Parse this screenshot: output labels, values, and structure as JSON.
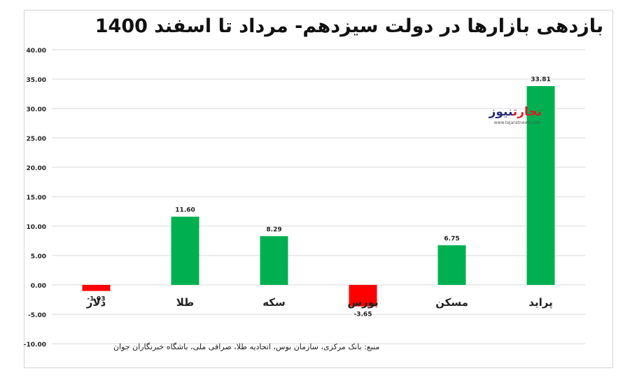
{
  "title": "بازدهی بازارها در دولت سیزدهم- مرداد تا اسفند 1400",
  "source": "منبع: بانک مرکزی، سازمان بوس، اتحادیه طلا، صرافی ملی، باشگاه خبرنگاران جوان",
  "logo": {
    "brand_red": "تجارت",
    "brand_blue": "نیوز",
    "url": "www.tejaratnews.com"
  },
  "colors": {
    "positive": "#00b050",
    "negative": "#ff0000",
    "grid": "#d9d9d9"
  },
  "chart_data": {
    "type": "bar",
    "categories": [
      "دلار",
      "طلا",
      "سکه",
      "بورس",
      "مسکن",
      "پراید"
    ],
    "values": [
      -1.03,
      11.6,
      8.29,
      -3.65,
      6.75,
      33.81
    ],
    "value_labels": [
      "-1.03",
      "11.60",
      "8.29",
      "-3.65",
      "6.75",
      "33.81"
    ],
    "ylim": [
      -10,
      40
    ],
    "yticks": [
      "-10.00",
      "-5.00",
      "0.00",
      "5.00",
      "10.00",
      "15.00",
      "20.00",
      "25.00",
      "30.00",
      "35.00",
      "40.00"
    ],
    "grid": true,
    "xlabel": "",
    "ylabel": ""
  }
}
